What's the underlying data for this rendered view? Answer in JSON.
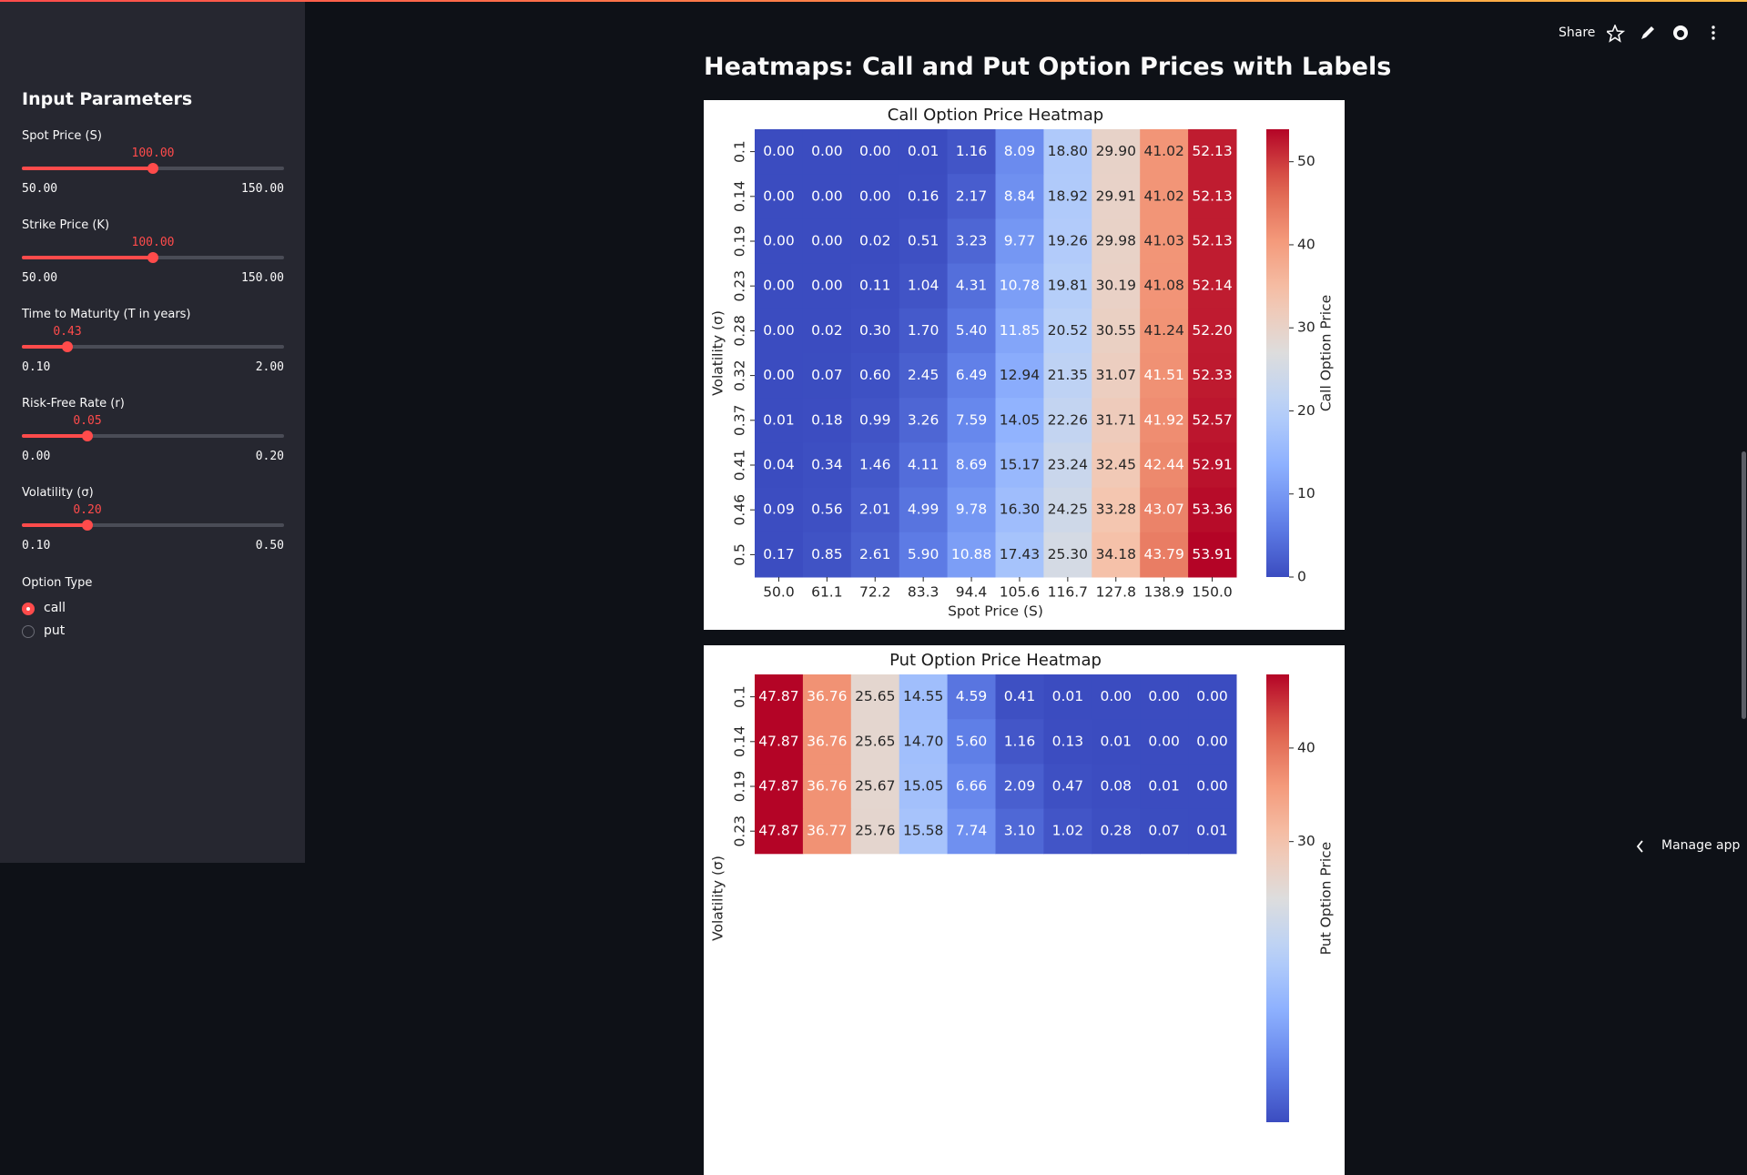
{
  "header": {
    "share": "Share",
    "manage_app": "Manage app"
  },
  "sidebar": {
    "title": "Input Parameters",
    "sliders": [
      {
        "label": "Spot Price (S)",
        "value": "100.00",
        "min": "50.00",
        "max": "150.00"
      },
      {
        "label": "Strike Price (K)",
        "value": "100.00",
        "min": "50.00",
        "max": "150.00"
      },
      {
        "label": "Time to Maturity (T in years)",
        "value": "0.43",
        "min": "0.10",
        "max": "2.00"
      },
      {
        "label": "Risk-Free Rate (r)",
        "value": "0.05",
        "min": "0.00",
        "max": "0.20"
      },
      {
        "label": "Volatility (σ)",
        "value": "0.20",
        "min": "0.10",
        "max": "0.50"
      }
    ],
    "option_type": {
      "label": "Option Type",
      "options": [
        "call",
        "put"
      ],
      "selected": "call"
    }
  },
  "main": {
    "title": "Heatmaps: Call and Put Option Prices with Labels"
  },
  "chart_data": [
    {
      "type": "heatmap",
      "title": "Call Option Price Heatmap",
      "x_label": "Spot Price (S)",
      "y_label": "Volatility (σ)",
      "colorbar_label": "Call Option Price",
      "colormap": "coolwarm",
      "categories": [
        "50.0",
        "61.1",
        "72.2",
        "83.3",
        "94.4",
        "105.6",
        "116.7",
        "127.8",
        "138.9",
        "150.0"
      ],
      "rows": [
        "0.1",
        "0.14",
        "0.19",
        "0.23",
        "0.28",
        "0.32",
        "0.37",
        "0.41",
        "0.46",
        "0.5"
      ],
      "values": [
        [
          0,
          0,
          0,
          0.01,
          1.16,
          8.09,
          18.8,
          29.9,
          41.02,
          52.13
        ],
        [
          0,
          0,
          0,
          0.16,
          2.17,
          8.84,
          18.92,
          29.91,
          41.02,
          52.13
        ],
        [
          0,
          0,
          0.02,
          0.51,
          3.23,
          9.77,
          19.26,
          29.98,
          41.03,
          52.13
        ],
        [
          0,
          0,
          0.11,
          1.04,
          4.31,
          10.78,
          19.81,
          30.19,
          41.08,
          52.14
        ],
        [
          0,
          0.02,
          0.3,
          1.7,
          5.4,
          11.85,
          20.52,
          30.55,
          41.24,
          52.2
        ],
        [
          0,
          0.07,
          0.6,
          2.45,
          6.49,
          12.94,
          21.35,
          31.07,
          41.51,
          52.33
        ],
        [
          0.01,
          0.18,
          0.99,
          3.26,
          7.59,
          14.05,
          22.26,
          31.71,
          41.92,
          52.57
        ],
        [
          0.04,
          0.34,
          1.46,
          4.11,
          8.69,
          15.17,
          23.24,
          32.45,
          42.44,
          52.91
        ],
        [
          0.09,
          0.56,
          2.01,
          4.99,
          9.78,
          16.3,
          24.25,
          33.28,
          43.07,
          53.36
        ],
        [
          0.17,
          0.85,
          2.61,
          5.9,
          10.88,
          17.43,
          25.3,
          34.18,
          43.79,
          53.91
        ]
      ],
      "value_labels": [
        [
          "0.00",
          "0.00",
          "0.00",
          "0.01",
          "1.16",
          "8.09",
          "18.80",
          "29.90",
          "41.02",
          "52.13"
        ],
        [
          "0.00",
          "0.00",
          "0.00",
          "0.16",
          "2.17",
          "8.84",
          "18.92",
          "29.91",
          "41.02",
          "52.13"
        ],
        [
          "0.00",
          "0.00",
          "0.02",
          "0.51",
          "3.23",
          "9.77",
          "19.26",
          "29.98",
          "41.03",
          "52.13"
        ],
        [
          "0.00",
          "0.00",
          "0.11",
          "1.04",
          "4.31",
          "10.78",
          "19.81",
          "30.19",
          "41.08",
          "52.14"
        ],
        [
          "0.00",
          "0.02",
          "0.30",
          "1.70",
          "5.40",
          "11.85",
          "20.52",
          "30.55",
          "41.24",
          "52.20"
        ],
        [
          "0.00",
          "0.07",
          "0.60",
          "2.45",
          "6.49",
          "12.94",
          "21.35",
          "31.07",
          "41.51",
          "52.33"
        ],
        [
          "0.01",
          "0.18",
          "0.99",
          "3.26",
          "7.59",
          "14.05",
          "22.26",
          "31.71",
          "41.92",
          "52.57"
        ],
        [
          "0.04",
          "0.34",
          "1.46",
          "4.11",
          "8.69",
          "15.17",
          "23.24",
          "32.45",
          "42.44",
          "52.91"
        ],
        [
          "0.09",
          "0.56",
          "2.01",
          "4.99",
          "9.78",
          "16.30",
          "24.25",
          "33.28",
          "43.07",
          "53.36"
        ],
        [
          "0.17",
          "0.85",
          "2.61",
          "5.90",
          "10.88",
          "17.43",
          "25.30",
          "34.18",
          "43.79",
          "53.91"
        ]
      ],
      "clim": [
        0,
        53.91
      ],
      "cticks": [
        0,
        10,
        20,
        30,
        40,
        50
      ]
    },
    {
      "type": "heatmap",
      "title": "Put Option Price Heatmap",
      "y_label": "Volatility (σ)",
      "colorbar_label": "Put Option Price",
      "colormap": "coolwarm",
      "rows": [
        "0.1",
        "0.14",
        "0.19",
        "0.23"
      ],
      "values": [
        [
          47.87,
          36.76,
          25.65,
          14.55,
          4.59,
          0.41,
          0.01,
          0,
          0,
          0
        ],
        [
          47.87,
          36.76,
          25.65,
          14.7,
          5.6,
          1.16,
          0.13,
          0.01,
          0,
          0
        ],
        [
          47.87,
          36.76,
          25.67,
          15.05,
          6.66,
          2.09,
          0.47,
          0.08,
          0.01,
          0
        ],
        [
          47.87,
          36.77,
          25.76,
          15.58,
          7.74,
          3.1,
          1.02,
          0.28,
          0.07,
          0.01
        ]
      ],
      "value_labels": [
        [
          "47.87",
          "36.76",
          "25.65",
          "14.55",
          "4.59",
          "0.41",
          "0.01",
          "0.00",
          "0.00",
          "0.00"
        ],
        [
          "47.87",
          "36.76",
          "25.65",
          "14.70",
          "5.60",
          "1.16",
          "0.13",
          "0.01",
          "0.00",
          "0.00"
        ],
        [
          "47.87",
          "36.76",
          "25.67",
          "15.05",
          "6.66",
          "2.09",
          "0.47",
          "0.08",
          "0.01",
          "0.00"
        ],
        [
          "47.87",
          "36.77",
          "25.76",
          "15.58",
          "7.74",
          "3.10",
          "1.02",
          "0.28",
          "0.07",
          "0.01"
        ]
      ],
      "clim": [
        0,
        47.87
      ],
      "cticks": [
        30,
        40
      ]
    }
  ]
}
